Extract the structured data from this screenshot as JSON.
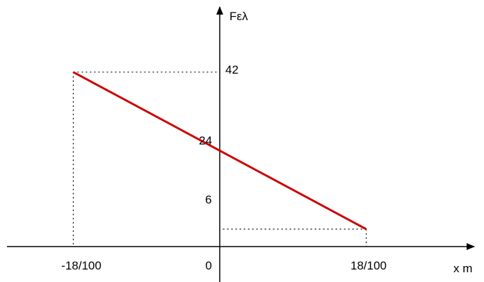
{
  "chart_data": {
    "type": "line",
    "ylabel": "Fελ",
    "xlabel": "x m",
    "x_tick_labels": [
      "-18/100",
      "0",
      "18/100"
    ],
    "x_ticks": [
      -0.18,
      0,
      0.18
    ],
    "y_tick_labels": [
      "42",
      "24",
      "6"
    ],
    "y_ticks": [
      42,
      24,
      6
    ],
    "series": [
      {
        "x": [
          -0.18,
          0.18
        ],
        "y": [
          42,
          6
        ]
      }
    ],
    "guides": [
      "dotted"
    ],
    "colors": {
      "line": "#cc0000",
      "axes": "#000000",
      "guides": "#000000"
    }
  }
}
